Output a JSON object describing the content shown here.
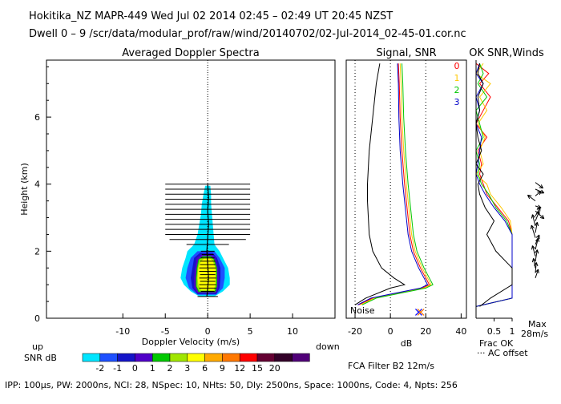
{
  "header": {
    "line1": "Hokitika_NZ   MAPR-449   Wed Jul 02 2014 02:45 – 02:49 UT 20:45 NZST",
    "line2": "Dwell   0 –  9    /scr/data/modular_prof/raw/wind/20140702/02-Jul-2014_02-45-01.cor.nc"
  },
  "footer": {
    "params": "IPP: 100μs,   PW: 2000ns,   NCI:  28,   NSpec: 10,  NHts: 50,   Dly: 2500ns,   Space: 1000ns,   Code: 4,   Npts: 256",
    "filter": "FCA Filter B2 12m/s"
  },
  "chart_data": [
    {
      "type": "heatmap",
      "title": "Averaged Doppler Spectra",
      "xlabel": "Doppler Velocity (m/s)",
      "ylabel": "Height (km)",
      "xlim": [
        -19,
        15
      ],
      "ylim": [
        0,
        7.7
      ],
      "x_ticks": [
        "-10",
        "-5",
        "0",
        "5",
        "10"
      ],
      "y_ticks": [
        "0",
        "2",
        "4",
        "6"
      ],
      "x_tick_values": [
        -10,
        -5,
        0,
        5,
        10
      ],
      "y_tick_values": [
        0,
        2,
        4,
        6
      ],
      "left_label": "up",
      "right_label": "down",
      "colorbar": {
        "label": "SNR dB",
        "levels": [
          "-2",
          "-1",
          "0",
          "1",
          "2",
          "3",
          "6",
          "9",
          "12",
          "15",
          "20"
        ],
        "colors": [
          "#00e5ff",
          "#1e50ff",
          "#1414c8",
          "#5000c8",
          "#00c800",
          "#a0e600",
          "#ffff00",
          "#ffaa00",
          "#ff7800",
          "#ff0000",
          "#640032",
          "#320028",
          "#500078"
        ]
      },
      "contours": [
        {
          "level": "-2",
          "color": "#00e5ff",
          "height": [
            0.65,
            0.8,
            1.0,
            1.2,
            1.5,
            1.8,
            2.0,
            2.2,
            2.5,
            2.8,
            3.1,
            3.4,
            3.7,
            3.95
          ],
          "left": [
            -1.0,
            -2.0,
            -2.8,
            -3.2,
            -3.0,
            -2.6,
            -2.4,
            -1.6,
            -1.2,
            -1.0,
            -0.8,
            -0.7,
            -0.5,
            -0.3
          ],
          "right": [
            0.8,
            1.8,
            2.6,
            2.6,
            2.4,
            1.8,
            1.4,
            0.8,
            0.7,
            0.6,
            0.5,
            0.4,
            0.4,
            0.3
          ]
        },
        {
          "level": "-1",
          "color": "#1e50ff",
          "height": [
            0.7,
            0.9,
            1.2,
            1.5,
            1.8,
            2.0
          ],
          "left": [
            -1.2,
            -2.2,
            -2.6,
            -2.4,
            -2.0,
            -1.2
          ],
          "right": [
            1.0,
            1.8,
            2.0,
            2.0,
            1.4,
            0.8
          ]
        },
        {
          "level": "0",
          "color": "#1414c8",
          "height": [
            0.72,
            0.9,
            1.2,
            1.5,
            1.8,
            1.95
          ],
          "left": [
            -1.2,
            -1.8,
            -2.0,
            -1.8,
            -1.6,
            -0.9
          ],
          "right": [
            1.0,
            1.4,
            1.5,
            1.5,
            1.1,
            0.6
          ]
        },
        {
          "level": "1",
          "color": "#5000c8",
          "height": [
            0.75,
            0.9,
            1.2,
            1.5,
            1.8,
            1.9
          ],
          "left": [
            -1.2,
            -1.6,
            -1.6,
            -1.5,
            -1.3,
            -0.7
          ],
          "right": [
            1.0,
            1.2,
            1.3,
            1.2,
            0.9,
            0.5
          ]
        },
        {
          "level": "2",
          "color": "#00c800",
          "height": [
            0.78,
            0.95,
            1.2,
            1.5,
            1.75,
            1.85
          ],
          "left": [
            -1.1,
            -1.4,
            -1.4,
            -1.3,
            -1.1,
            -0.6
          ],
          "right": [
            0.9,
            1.1,
            1.1,
            1.1,
            0.8,
            0.4
          ]
        },
        {
          "level": "3",
          "color": "#a0e600",
          "height": [
            0.8,
            0.95,
            1.2,
            1.5,
            1.75,
            1.82
          ],
          "left": [
            -1.0,
            -1.3,
            -1.3,
            -1.2,
            -1.0,
            -0.5
          ],
          "right": [
            0.8,
            1.0,
            1.0,
            1.0,
            0.7,
            0.35
          ]
        },
        {
          "level": "6",
          "color": "#ffff00",
          "height": [
            0.85,
            1.0,
            1.2,
            1.5,
            1.7,
            1.78
          ],
          "left": [
            -0.8,
            -1.1,
            -1.2,
            -1.1,
            -0.8,
            -0.4
          ],
          "right": [
            0.7,
            0.9,
            0.9,
            0.9,
            0.6,
            0.3
          ]
        }
      ],
      "mean_velocity": {
        "height": [
          0.65,
          0.9,
          1.2,
          1.6,
          2.0,
          2.4,
          2.8,
          3.2,
          3.6,
          4.0
        ],
        "x": [
          -0.1,
          0.0,
          0.1,
          0.0,
          -0.1,
          0.0,
          0.1,
          0.0,
          0.1,
          0.0
        ]
      },
      "spectral_width": {
        "height": [
          0.65,
          0.8,
          0.9,
          1.0,
          1.1,
          1.2,
          1.3,
          1.4,
          1.5,
          1.6,
          1.7,
          1.8,
          1.9,
          2.0,
          2.2,
          2.35,
          2.5,
          2.65,
          2.8,
          2.95,
          3.1,
          3.25,
          3.4,
          3.55,
          3.7,
          3.85,
          4.0
        ],
        "x_left": [
          -1.2,
          -0.8,
          -1.0,
          -1.0,
          -0.9,
          -1.0,
          -0.9,
          -1.0,
          -1.0,
          -0.9,
          -0.9,
          -0.8,
          -0.7,
          -0.8,
          -2.5,
          -4.5,
          -5.0,
          -5.0,
          -5.0,
          -5.0,
          -5.0,
          -5.0,
          -5.0,
          -5.0,
          -5.0,
          -5.0,
          -5.0
        ],
        "x_right": [
          1.2,
          0.8,
          1.0,
          1.0,
          0.9,
          1.0,
          0.9,
          1.0,
          1.0,
          0.9,
          0.9,
          0.8,
          0.7,
          0.8,
          2.5,
          4.5,
          5.0,
          5.0,
          5.0,
          5.0,
          5.0,
          5.0,
          5.0,
          5.0,
          5.0,
          5.0,
          5.0
        ]
      }
    },
    {
      "type": "line",
      "title": "Signal, SNR",
      "xlabel": "dB",
      "xlim": [
        -25,
        43
      ],
      "ylim": [
        0,
        7.7
      ],
      "x_ticks": [
        "-20",
        "0",
        "20",
        "40"
      ],
      "x_tick_values": [
        -20,
        0,
        20,
        40
      ],
      "noise_label": "Noise",
      "noise_marks": [
        {
          "x": 16,
          "y": 0.18,
          "color": "#0000ff"
        },
        {
          "x": 17.2,
          "y": 0.18,
          "color": "#ff7800"
        }
      ],
      "height": [
        0.4,
        0.6,
        0.9,
        1.0,
        1.2,
        1.5,
        2.0,
        2.5,
        3.0,
        3.5,
        4.0,
        5.0,
        6.0,
        7.0,
        7.6
      ],
      "series": [
        {
          "name": "0",
          "color": "#ff0000",
          "x": [
            -18,
            -10,
            18,
            22,
            20,
            17,
            13,
            11,
            10,
            9,
            8,
            6.5,
            5.5,
            5,
            4.5
          ]
        },
        {
          "name": "1",
          "color": "#ffc800",
          "x": [
            -17,
            -9,
            19,
            23,
            21,
            18,
            14,
            12,
            11,
            10,
            9,
            7.5,
            6.5,
            6,
            5.5
          ]
        },
        {
          "name": "2",
          "color": "#00c800",
          "x": [
            -16,
            -8,
            20,
            24,
            22,
            19,
            15,
            13,
            12,
            11,
            10,
            8.5,
            7.5,
            7,
            6.5
          ]
        },
        {
          "name": "3",
          "color": "#0000c8",
          "x": [
            -18.5,
            -11,
            17,
            21,
            19,
            16,
            12,
            10,
            9,
            8,
            7,
            5.5,
            4.8,
            4.5,
            4
          ]
        },
        {
          "name": "",
          "color": "#000000",
          "x": [
            -20,
            -14,
            0,
            8,
            2,
            -5,
            -10,
            -12,
            -12.5,
            -13,
            -13,
            -12,
            -10,
            -8,
            -6
          ]
        }
      ]
    },
    {
      "type": "line",
      "title": "OK SNR,Winds",
      "xlim": [
        0,
        1
      ],
      "ylim": [
        0,
        7.7
      ],
      "x_ticks": [
        "0.5",
        "1"
      ],
      "x_tick_values": [
        0.5,
        1
      ],
      "legend": [
        "0",
        "1",
        "2",
        "3"
      ],
      "legend_colors": [
        "#ff0000",
        "#ffc800",
        "#00c800",
        "#0000c8"
      ],
      "footnote1": "Frac OK",
      "footnote2": "··· AC offset",
      "height": [
        0.35,
        0.6,
        1.0,
        1.5,
        2.0,
        2.5,
        2.9,
        3.3,
        3.7,
        4.0,
        4.3,
        4.6,
        5.0,
        5.4,
        5.8,
        6.2,
        6.6,
        7.0,
        7.3,
        7.6
      ],
      "series": [
        {
          "name": "0",
          "color": "#ff0000",
          "x": [
            0.0,
            1.0,
            1.0,
            1.0,
            1.0,
            1.0,
            0.9,
            0.6,
            0.3,
            0.2,
            0.1,
            0.15,
            0.05,
            0.3,
            0.0,
            0.2,
            0.4,
            0.1,
            0.35,
            0.0
          ]
        },
        {
          "name": "1",
          "color": "#ffc800",
          "x": [
            0.0,
            1.0,
            1.0,
            1.0,
            1.0,
            1.0,
            0.95,
            0.7,
            0.4,
            0.3,
            0.0,
            0.2,
            0.1,
            0.25,
            0.05,
            0.3,
            0.1,
            0.4,
            0.0,
            0.2
          ]
        },
        {
          "name": "2",
          "color": "#00c800",
          "x": [
            0.0,
            1.0,
            1.0,
            1.0,
            1.0,
            1.0,
            0.85,
            0.55,
            0.35,
            0.15,
            0.05,
            0.1,
            0.0,
            0.2,
            0.1,
            0.0,
            0.3,
            0.05,
            0.2,
            0.1
          ]
        },
        {
          "name": "3",
          "color": "#0000c8",
          "x": [
            0.0,
            1.0,
            1.0,
            1.0,
            1.0,
            1.0,
            0.8,
            0.5,
            0.25,
            0.1,
            0.0,
            0.05,
            0.1,
            0.15,
            0.0,
            0.1,
            0.0,
            0.2,
            0.0,
            0.1
          ]
        },
        {
          "name": "",
          "color": "#000000",
          "x": [
            0.1,
            0.4,
            1.0,
            1.0,
            0.55,
            0.3,
            0.5,
            0.25,
            0.1,
            0.05,
            0.2,
            0.0,
            0.15,
            0.05,
            0.0,
            0.1,
            0.05,
            0.2,
            0.05,
            0.1
          ]
        }
      ]
    },
    {
      "type": "scatter",
      "title": "Winds",
      "max_label1": "Max",
      "max_label2": "28m/s",
      "max_speed": 28,
      "barbs": [
        {
          "height": 4.05,
          "u": 8,
          "v": -6
        },
        {
          "height": 3.85,
          "u": 9,
          "v": -4
        },
        {
          "height": 3.65,
          "u": 6,
          "v": 5
        },
        {
          "height": 3.5,
          "u": -8,
          "v": 6
        },
        {
          "height": 3.35,
          "u": 6,
          "v": -2
        },
        {
          "height": 3.2,
          "u": 9,
          "v": -8
        },
        {
          "height": 3.05,
          "u": 5,
          "v": 9
        },
        {
          "height": 2.9,
          "u": 4,
          "v": 10
        },
        {
          "height": 2.75,
          "u": -3,
          "v": 12
        },
        {
          "height": 2.55,
          "u": 2,
          "v": 11
        },
        {
          "height": 2.4,
          "u": -4,
          "v": 13
        },
        {
          "height": 2.2,
          "u": 4,
          "v": 10
        },
        {
          "height": 2.05,
          "u": 3,
          "v": 12
        },
        {
          "height": 1.85,
          "u": -3,
          "v": 11
        },
        {
          "height": 1.7,
          "u": 2,
          "v": 12
        },
        {
          "height": 1.5,
          "u": -2,
          "v": 10
        },
        {
          "height": 1.35,
          "u": 1,
          "v": 11
        },
        {
          "height": 1.2,
          "u": 3,
          "v": 9
        }
      ]
    }
  ]
}
